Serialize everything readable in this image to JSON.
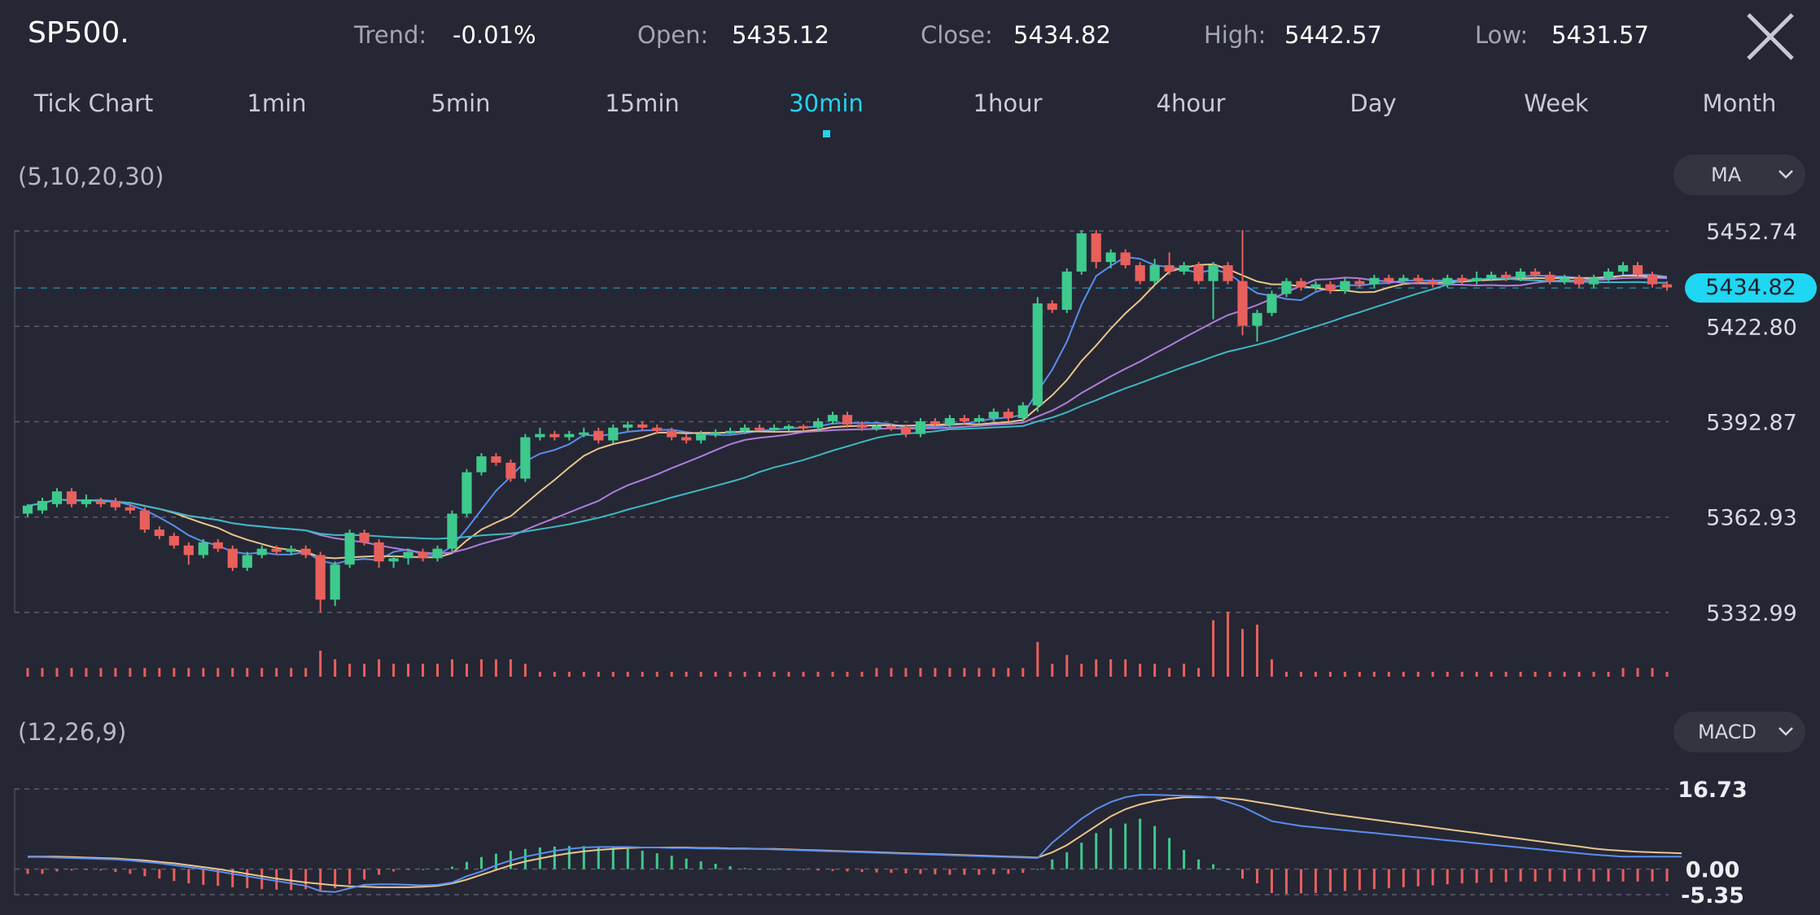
{
  "header": {
    "symbol": "SP500.",
    "trend_label": "Trend:",
    "trend_value": "-0.01%",
    "open_label": "Open:",
    "open_value": "5435.12",
    "close_label": "Close:",
    "close_value": "5434.82",
    "high_label": "High:",
    "high_value": "5442.57",
    "low_label": "Low:",
    "low_value": "5431.57"
  },
  "tabs": [
    "Tick Chart",
    "1min",
    "5min",
    "15min",
    "30min",
    "1hour",
    "4hour",
    "Day",
    "Week",
    "Month"
  ],
  "active_tab": "30min",
  "indicators": {
    "ma_params": "(5,10,20,30)",
    "ma_button": "MA",
    "macd_params": "(12,26,9)",
    "macd_button": "MACD"
  },
  "current_price_label": "5434.82",
  "colors": {
    "background": "#262734",
    "up": "#3ec98d",
    "down": "#e8605c",
    "accent": "#22d3f0",
    "ma5": "#5a8ef0",
    "ma10": "#e9c58d",
    "ma20": "#b17ddd",
    "ma30": "#3fb8c3",
    "macd_dif": "#5a8ef0",
    "macd_dea": "#e9c58d"
  },
  "chart_data": [
    {
      "type": "candlestick",
      "name": "price",
      "yticks": [
        5452.74,
        5422.8,
        5392.87,
        5362.93,
        5332.99
      ],
      "ylim": [
        5332.99,
        5452.74
      ],
      "current_price": 5434.82,
      "grid": true,
      "ohlc": [
        [
          5364,
          5366.5,
          5363,
          5367
        ],
        [
          5365,
          5368,
          5364,
          5369
        ],
        [
          5367,
          5371,
          5366,
          5372
        ],
        [
          5371,
          5367,
          5366,
          5372
        ],
        [
          5367,
          5368.5,
          5366,
          5370
        ],
        [
          5368,
          5367,
          5366,
          5369
        ],
        [
          5368,
          5366,
          5365,
          5369
        ],
        [
          5366,
          5365,
          5364,
          5367
        ],
        [
          5365,
          5359,
          5358,
          5366
        ],
        [
          5359,
          5357,
          5356,
          5360
        ],
        [
          5357,
          5354,
          5353,
          5358
        ],
        [
          5354,
          5351,
          5348,
          5355
        ],
        [
          5351,
          5355,
          5350,
          5356
        ],
        [
          5355,
          5353,
          5352,
          5356
        ],
        [
          5353,
          5347,
          5346,
          5354
        ],
        [
          5347,
          5351,
          5346,
          5352
        ],
        [
          5351,
          5353,
          5350,
          5354
        ],
        [
          5353,
          5352,
          5351,
          5354
        ],
        [
          5352,
          5353,
          5351,
          5354
        ],
        [
          5353,
          5351,
          5350,
          5354
        ],
        [
          5351,
          5337,
          5333,
          5352
        ],
        [
          5337,
          5348,
          5335,
          5349
        ],
        [
          5348,
          5358,
          5347,
          5359
        ],
        [
          5358,
          5355,
          5354,
          5359
        ],
        [
          5355,
          5349,
          5347,
          5356
        ],
        [
          5349,
          5350,
          5347,
          5351
        ],
        [
          5350,
          5352,
          5348,
          5353
        ],
        [
          5352,
          5350,
          5349,
          5353
        ],
        [
          5350,
          5353,
          5349,
          5354
        ],
        [
          5353,
          5364,
          5352,
          5365
        ],
        [
          5364,
          5377,
          5363,
          5378
        ],
        [
          5377,
          5382,
          5376,
          5383
        ],
        [
          5382,
          5380,
          5379,
          5383
        ],
        [
          5380,
          5375,
          5374,
          5381
        ],
        [
          5375,
          5388,
          5374,
          5389
        ],
        [
          5388,
          5389,
          5387,
          5391
        ],
        [
          5389,
          5388,
          5387,
          5390
        ],
        [
          5388,
          5389,
          5387,
          5390
        ],
        [
          5389,
          5389.5,
          5388,
          5391
        ],
        [
          5390,
          5387,
          5386,
          5391
        ],
        [
          5387,
          5391,
          5386,
          5392
        ],
        [
          5391,
          5392,
          5390,
          5393
        ],
        [
          5392,
          5391,
          5390,
          5393
        ],
        [
          5391,
          5390,
          5389,
          5392
        ],
        [
          5390,
          5388,
          5387,
          5391
        ],
        [
          5388,
          5387,
          5386,
          5389
        ],
        [
          5387,
          5389,
          5386,
          5390
        ],
        [
          5389,
          5389.5,
          5388,
          5390.5
        ],
        [
          5389.5,
          5390,
          5389,
          5391
        ],
        [
          5390,
          5391,
          5389,
          5392
        ],
        [
          5391,
          5390.5,
          5390,
          5392
        ],
        [
          5390.5,
          5391,
          5390,
          5392
        ],
        [
          5391,
          5391.5,
          5390,
          5392
        ],
        [
          5391.5,
          5391,
          5390,
          5392
        ],
        [
          5391,
          5393,
          5390,
          5394
        ],
        [
          5393,
          5395,
          5392,
          5396
        ],
        [
          5395,
          5392,
          5391,
          5396
        ],
        [
          5392,
          5391,
          5390,
          5393
        ],
        [
          5391,
          5391.5,
          5390,
          5392
        ],
        [
          5391.5,
          5391,
          5390,
          5392
        ],
        [
          5391,
          5389,
          5388,
          5392
        ],
        [
          5389,
          5393,
          5388,
          5394
        ],
        [
          5393,
          5392,
          5391,
          5394
        ],
        [
          5392,
          5394,
          5391,
          5395
        ],
        [
          5394,
          5393,
          5392,
          5395
        ],
        [
          5393,
          5394,
          5392,
          5395
        ],
        [
          5394,
          5396,
          5393,
          5397
        ],
        [
          5396,
          5394,
          5393,
          5397
        ],
        [
          5394,
          5398,
          5393,
          5399
        ],
        [
          5398,
          5430,
          5396,
          5432
        ],
        [
          5430,
          5428,
          5427,
          5431
        ],
        [
          5428,
          5440,
          5427,
          5441
        ],
        [
          5440,
          5452,
          5439,
          5453
        ],
        [
          5452,
          5443,
          5441,
          5453
        ],
        [
          5443,
          5446,
          5441,
          5447
        ],
        [
          5446,
          5442,
          5441,
          5447
        ],
        [
          5442,
          5437,
          5436,
          5443
        ],
        [
          5437,
          5442,
          5436,
          5444
        ],
        [
          5442,
          5440,
          5439,
          5446
        ],
        [
          5440,
          5442,
          5439,
          5443
        ],
        [
          5442,
          5437,
          5436,
          5443
        ],
        [
          5437,
          5442,
          5425,
          5443
        ],
        [
          5442,
          5437,
          5436,
          5443
        ],
        [
          5437,
          5423,
          5420,
          5453
        ],
        [
          5423,
          5427,
          5418,
          5428
        ],
        [
          5427,
          5433,
          5426,
          5434
        ],
        [
          5433,
          5437,
          5432,
          5438
        ],
        [
          5437,
          5435,
          5434,
          5438
        ],
        [
          5435,
          5436,
          5434,
          5437
        ],
        [
          5436,
          5434,
          5433,
          5437
        ],
        [
          5434,
          5437,
          5433,
          5438
        ],
        [
          5437,
          5436,
          5435,
          5438
        ],
        [
          5436,
          5438,
          5435,
          5439
        ],
        [
          5438,
          5437,
          5436,
          5439
        ],
        [
          5437,
          5438,
          5436,
          5439
        ],
        [
          5438,
          5437,
          5436,
          5439
        ],
        [
          5437,
          5436,
          5435,
          5438
        ],
        [
          5436,
          5438,
          5435,
          5439
        ],
        [
          5438,
          5437,
          5436,
          5439
        ],
        [
          5437,
          5438,
          5436,
          5440
        ],
        [
          5438,
          5439,
          5437,
          5440
        ],
        [
          5439,
          5438,
          5437,
          5440
        ],
        [
          5438,
          5440,
          5437,
          5441
        ],
        [
          5440,
          5439,
          5438,
          5441
        ],
        [
          5439,
          5437,
          5436,
          5440
        ],
        [
          5437,
          5438,
          5436,
          5439
        ],
        [
          5438,
          5436,
          5435,
          5439
        ],
        [
          5436,
          5438,
          5435,
          5439
        ],
        [
          5438,
          5440,
          5437,
          5441
        ],
        [
          5440,
          5442,
          5439,
          5443
        ],
        [
          5442,
          5439,
          5438,
          5443
        ],
        [
          5439,
          5436,
          5435,
          5440
        ],
        [
          5436,
          5435,
          5434,
          5437
        ]
      ],
      "volume": [
        2,
        2,
        2,
        2,
        2,
        2,
        2,
        2,
        2,
        2,
        2,
        2,
        2,
        2,
        2,
        2,
        2,
        2,
        2,
        2,
        6,
        4,
        3,
        3,
        4,
        3,
        3,
        3,
        3,
        4,
        3,
        4,
        4,
        4,
        3,
        1,
        1,
        1,
        1,
        1,
        1,
        1,
        1,
        1,
        1,
        1,
        1,
        1,
        1,
        1,
        1,
        1,
        1,
        1,
        1,
        1,
        1,
        1,
        2,
        2,
        2,
        2,
        2,
        2,
        2,
        2,
        2,
        2,
        2,
        8,
        3,
        5,
        3,
        4,
        4,
        4,
        3,
        3,
        2,
        3,
        2,
        13,
        15,
        11,
        12,
        4,
        1,
        1,
        1,
        1,
        1,
        1,
        1,
        1,
        1,
        1,
        1,
        1,
        1,
        1,
        1,
        1,
        1,
        1,
        1,
        1,
        1,
        1,
        1,
        2,
        2,
        2,
        1
      ],
      "moving_averages": [
        {
          "period": 5,
          "color": "#5a8ef0"
        },
        {
          "period": 10,
          "color": "#e9c58d"
        },
        {
          "period": 20,
          "color": "#b17ddd"
        },
        {
          "period": 30,
          "color": "#3fb8c3"
        }
      ]
    },
    {
      "type": "macd",
      "params": [
        12,
        26,
        9
      ],
      "yticks": [
        16.73,
        0.0,
        -5.35
      ],
      "ylim": [
        -5.35,
        16.73
      ],
      "histogram": [
        -1,
        -1,
        -0.5,
        -0.3,
        -0.2,
        -0.3,
        -0.6,
        -1,
        -1.5,
        -2,
        -2.5,
        -3,
        -3.3,
        -3.5,
        -3.8,
        -4,
        -4.2,
        -4.3,
        -4.4,
        -4.2,
        -4.5,
        -4,
        -3.2,
        -2.2,
        -1.2,
        -0.5,
        -0.2,
        0,
        0,
        0.5,
        1.5,
        2.5,
        3.2,
        3.8,
        4.2,
        4.5,
        4.7,
        4.8,
        4.8,
        4.7,
        4.5,
        4.2,
        3.8,
        3.3,
        2.8,
        2.2,
        1.6,
        1.1,
        0.6,
        0.2,
        0,
        0,
        -0.1,
        -0.2,
        -0.3,
        -0.4,
        -0.5,
        -0.6,
        -0.7,
        -0.8,
        -0.9,
        -1,
        -1.1,
        -1.2,
        -1.2,
        -1.2,
        -1.1,
        -1,
        -0.8,
        0,
        2,
        3.5,
        5.5,
        7.5,
        8.5,
        9.5,
        10.5,
        9,
        6.5,
        4,
        2,
        1,
        0,
        -2,
        -3,
        -5,
        -5.2,
        -5.1,
        -5,
        -4.8,
        -4.6,
        -4.4,
        -4.2,
        -4,
        -3.8,
        -3.6,
        -3.4,
        -3.2,
        -3,
        -2.9,
        -2.8,
        -2.7,
        -2.6,
        -2.6,
        -2.6,
        -2.6,
        -2.6,
        -2.6,
        -2.6,
        -2.6,
        -2.6,
        -2.6,
        -2.6
      ],
      "dif": [
        2.5,
        2.5,
        2.4,
        2.3,
        2.2,
        2.1,
        2.0,
        1.8,
        1.5,
        1.2,
        0.8,
        0.4,
        0,
        -0.5,
        -1,
        -1.5,
        -2,
        -2.5,
        -3,
        -3.5,
        -4.6,
        -4.8,
        -4.0,
        -3.3,
        -3.2,
        -3.2,
        -3.3,
        -3.4,
        -3.3,
        -2.8,
        -1.5,
        -0.5,
        0.8,
        1.8,
        2.6,
        3.2,
        3.8,
        4.2,
        4.5,
        4.6,
        4.6,
        4.6,
        4.5,
        4.5,
        4.4,
        4.4,
        4.3,
        4.3,
        4.2,
        4.2,
        4.2,
        4.1,
        4.0,
        3.9,
        3.8,
        3.7,
        3.6,
        3.5,
        3.4,
        3.3,
        3.2,
        3.1,
        3.0,
        2.9,
        2.8,
        2.7,
        2.6,
        2.5,
        2.4,
        2.3,
        5.5,
        8,
        10.5,
        12.5,
        14,
        15,
        15.5,
        15.5,
        15.4,
        15.3,
        15.2,
        15,
        14,
        13,
        11.5,
        10,
        9.5,
        9,
        8.7,
        8.4,
        8.1,
        7.8,
        7.5,
        7.2,
        6.9,
        6.6,
        6.3,
        6.0,
        5.7,
        5.4,
        5.1,
        4.8,
        4.5,
        4.2,
        3.9,
        3.6,
        3.3,
        3.0,
        2.8,
        2.6,
        2.6,
        2.6,
        2.6,
        2.6
      ],
      "dea": [
        2.6,
        2.6,
        2.6,
        2.5,
        2.4,
        2.3,
        2.2,
        2.0,
        1.8,
        1.5,
        1.2,
        0.8,
        0.4,
        0,
        -0.5,
        -1,
        -1.5,
        -2,
        -2.4,
        -2.8,
        -3.1,
        -3.4,
        -3.6,
        -3.7,
        -3.8,
        -3.8,
        -3.8,
        -3.7,
        -3.5,
        -3.0,
        -2.2,
        -1.2,
        -0.2,
        0.8,
        1.6,
        2.2,
        2.8,
        3.3,
        3.7,
        4.0,
        4.2,
        4.4,
        4.5,
        4.5,
        4.5,
        4.5,
        4.4,
        4.4,
        4.3,
        4.3,
        4.2,
        4.2,
        4.1,
        4.0,
        3.9,
        3.8,
        3.7,
        3.6,
        3.5,
        3.4,
        3.3,
        3.2,
        3.1,
        3.0,
        2.9,
        2.8,
        2.7,
        2.6,
        2.5,
        2.4,
        3.5,
        5,
        7,
        9,
        11,
        12.5,
        13.5,
        14.2,
        14.7,
        15,
        15,
        15,
        14.8,
        14.5,
        14,
        13.5,
        13,
        12.5,
        12,
        11.5,
        11.1,
        10.7,
        10.3,
        9.9,
        9.5,
        9.1,
        8.7,
        8.3,
        7.9,
        7.5,
        7.1,
        6.7,
        6.3,
        5.9,
        5.5,
        5.1,
        4.7,
        4.3,
        4.0,
        3.8,
        3.6,
        3.5,
        3.4,
        3.3
      ]
    }
  ]
}
